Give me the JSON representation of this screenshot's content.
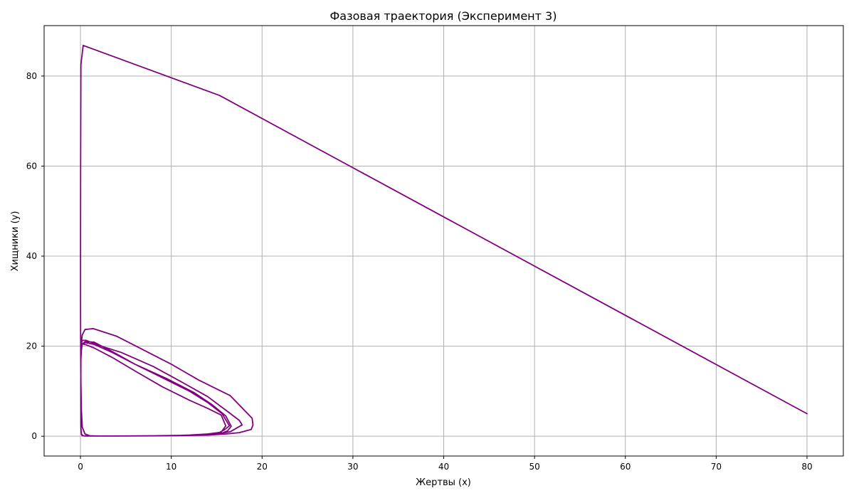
{
  "chart_data": {
    "type": "line",
    "title": "Фазовая траектория (Эксперимент 3)",
    "xlabel": "Жертвы (x)",
    "ylabel": "Хищники (y)",
    "xlim": [
      -4,
      84
    ],
    "ylim": [
      -4.4,
      91.2
    ],
    "xticks": [
      0,
      10,
      20,
      30,
      40,
      50,
      60,
      70,
      80
    ],
    "yticks": [
      0,
      20,
      40,
      60,
      80
    ],
    "grid": true,
    "legend": false,
    "color": "#800080",
    "series": [
      {
        "x": [
          80,
          15.3,
          0.3,
          0.05,
          0.02,
          0.01,
          0.01,
          0.02,
          0.03,
          0.05,
          0.1,
          0.2,
          0.5,
          1.0,
          2.0,
          4.0,
          6.0,
          8.0,
          10.0,
          12.0,
          14.0,
          15.5,
          16.0,
          15.5,
          14.0,
          12.0,
          9.0,
          6.0,
          3.5,
          1.5,
          0.5,
          0.2,
          0.1,
          0.05,
          0.04,
          0.05,
          0.1,
          0.2,
          0.5,
          2.0,
          5.0,
          8.0,
          10.0,
          12.0,
          14.0,
          15.3,
          15.9,
          16.4,
          15.6,
          14.0,
          12.0,
          9.0,
          6.0,
          3.5,
          1.5,
          0.5,
          0.2,
          0.1,
          0.05,
          0.04,
          0.05,
          0.1,
          0.3,
          1.0,
          4.0,
          8.0,
          10.5,
          12.5,
          14.5,
          15.5,
          16.2,
          16.6,
          16.0,
          14.5,
          12.5,
          9.5,
          6.0,
          3.5,
          1.5,
          0.5,
          0.2,
          0.1,
          0.05,
          0.04,
          0.05,
          0.1,
          0.3,
          1.0,
          4.0,
          8.0,
          11.0,
          13.0,
          15.0,
          16.5,
          17.8,
          17.5,
          16.2,
          14.0,
          11.0,
          8.0,
          4.5,
          2.0,
          0.6,
          0.2,
          0.1,
          0.05,
          0.04,
          0.05,
          0.1,
          0.3,
          1.0,
          4.0,
          8.0,
          11.5,
          14.0,
          16.0,
          17.5,
          18.8,
          19.0,
          18.9,
          16.5,
          13.0,
          10.0,
          4.0,
          1.4,
          0.5,
          0.2,
          0.1,
          0.05
        ],
        "y": [
          5.0,
          75.7,
          86.8,
          82.5,
          60.0,
          40.0,
          30.0,
          22.0,
          18.0,
          12.0,
          6.0,
          2.0,
          0.5,
          0.1,
          0.05,
          0.05,
          0.06,
          0.08,
          0.15,
          0.25,
          0.5,
          0.9,
          2.3,
          4.7,
          6.2,
          8.0,
          11.0,
          14.5,
          17.5,
          19.6,
          20.4,
          20.5,
          19.8,
          18.0,
          10.0,
          2.0,
          0.5,
          0.1,
          0.05,
          0.05,
          0.06,
          0.1,
          0.15,
          0.2,
          0.4,
          0.8,
          1.5,
          2.3,
          5.0,
          7.5,
          10.0,
          13.0,
          16.0,
          18.6,
          20.4,
          20.8,
          20.5,
          20.0,
          18.0,
          10.0,
          2.0,
          0.5,
          0.1,
          0.05,
          0.05,
          0.08,
          0.12,
          0.2,
          0.35,
          0.6,
          1.2,
          2.2,
          4.5,
          7.0,
          9.7,
          12.8,
          16.0,
          18.8,
          20.9,
          21.0,
          20.5,
          19.0,
          17.0,
          10.0,
          2.0,
          0.4,
          0.1,
          0.05,
          0.05,
          0.08,
          0.15,
          0.25,
          0.5,
          1.0,
          2.5,
          3.5,
          5.5,
          8.8,
          12.2,
          15.5,
          18.6,
          20.2,
          21.3,
          21.3,
          20.6,
          19.0,
          10.0,
          2.0,
          0.4,
          0.1,
          0.05,
          0.05,
          0.08,
          0.15,
          0.25,
          0.5,
          0.8,
          1.5,
          2.5,
          4.0,
          9.0,
          12.5,
          16.0,
          22.2,
          23.9,
          23.7,
          22.5,
          21.0,
          19.5
        ]
      }
    ]
  }
}
